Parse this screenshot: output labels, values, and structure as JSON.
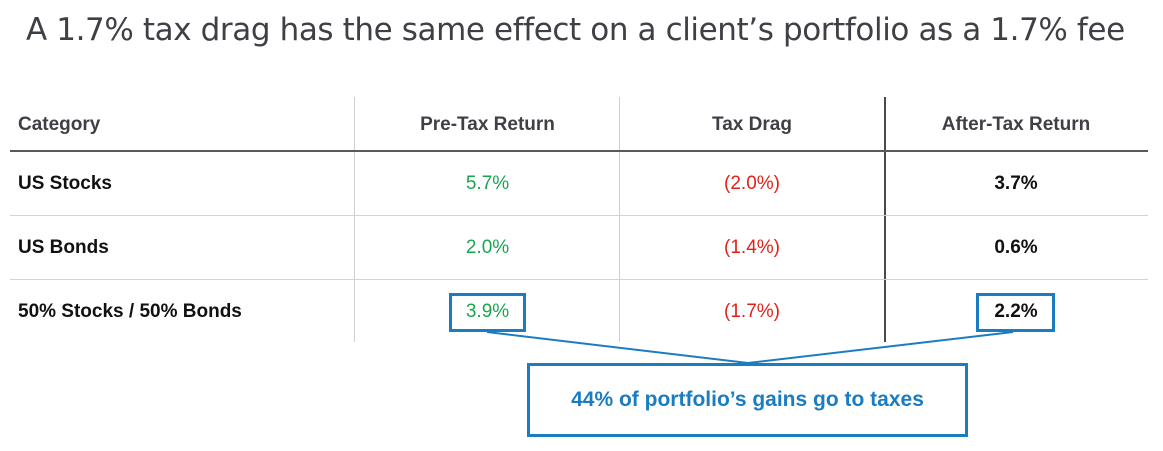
{
  "title": "A 1.7% tax drag has the same effect on a client’s portfolio as a 1.7% fee",
  "table": {
    "headers": [
      "Category",
      "Pre-Tax Return",
      "Tax Drag",
      "After-Tax Return"
    ],
    "rows": [
      {
        "category": "US Stocks",
        "pre_tax": "5.7%",
        "tax_drag": "(2.0%)",
        "after_tax": "3.7%"
      },
      {
        "category": "US Bonds",
        "pre_tax": "2.0%",
        "tax_drag": "(1.4%)",
        "after_tax": "0.6%"
      },
      {
        "category": "50% Stocks / 50% Bonds",
        "pre_tax": "3.9%",
        "tax_drag": "(1.7%)",
        "after_tax": "2.2%"
      }
    ]
  },
  "callout": {
    "text": "44% of portfolio’s gains go to taxes"
  },
  "colors": {
    "positive": "#1aa64f",
    "negative": "#e0221b",
    "accent": "#1b7cc2",
    "title_text": "#3f3f46"
  }
}
